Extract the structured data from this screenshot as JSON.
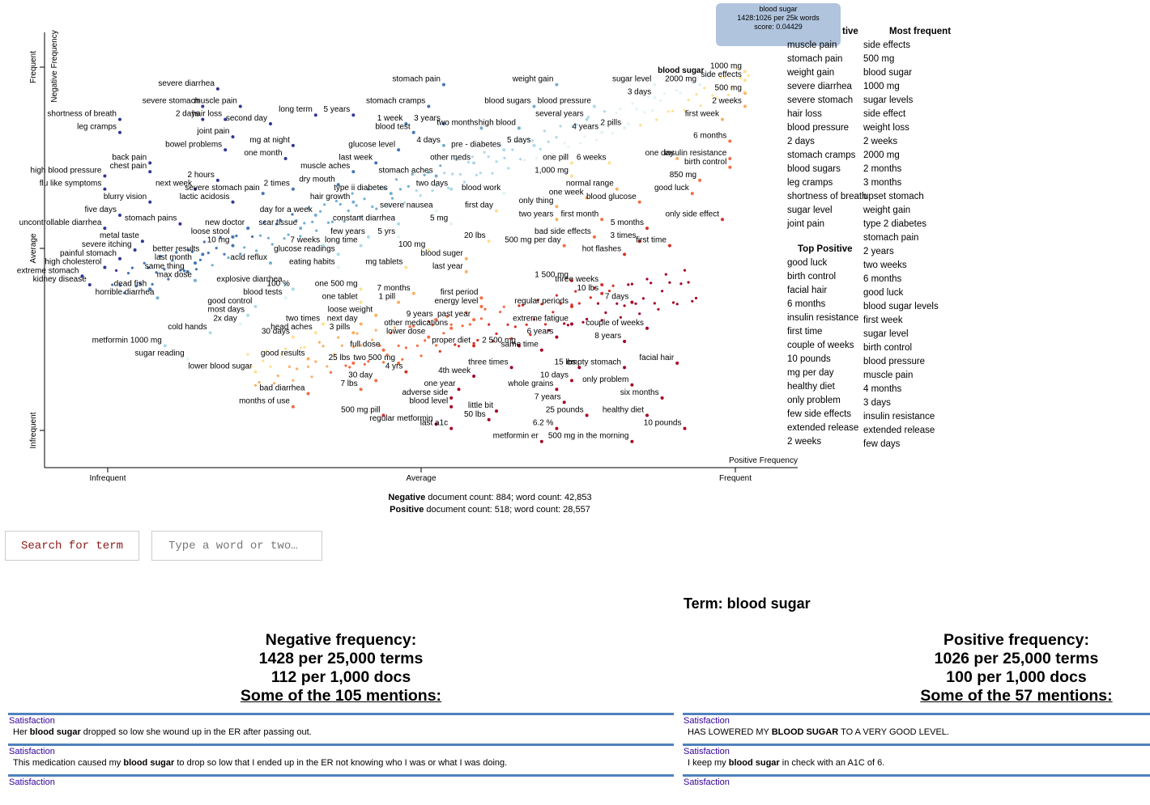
{
  "chart_data": {
    "type": "scatter",
    "title": "",
    "xlabel": "Positive Frequency",
    "ylabel": "Negative Frequency",
    "x_ticks": [
      "Infrequent",
      "Average",
      "Frequent"
    ],
    "y_ticks": [
      "Frequent",
      "Average",
      "Infrequent"
    ],
    "xlim": [
      0,
      1
    ],
    "ylim": [
      0,
      1
    ],
    "points": [
      {
        "t": "severe diarrhea",
        "x": 0.23,
        "y": 0.87
      },
      {
        "t": "muscle pain",
        "x": 0.26,
        "y": 0.83
      },
      {
        "t": "severe stomach",
        "x": 0.21,
        "y": 0.83
      },
      {
        "t": "2 days",
        "x": 0.21,
        "y": 0.8
      },
      {
        "t": "hair loss",
        "x": 0.24,
        "y": 0.8
      },
      {
        "t": "second day",
        "x": 0.3,
        "y": 0.79
      },
      {
        "t": "long term",
        "x": 0.36,
        "y": 0.81
      },
      {
        "t": "5 years",
        "x": 0.41,
        "y": 0.81
      },
      {
        "t": "shortness of breath",
        "x": 0.1,
        "y": 0.8
      },
      {
        "t": "leg cramps",
        "x": 0.1,
        "y": 0.77
      },
      {
        "t": "joint pain",
        "x": 0.25,
        "y": 0.76
      },
      {
        "t": "mg at night",
        "x": 0.33,
        "y": 0.74
      },
      {
        "t": "bowel problems",
        "x": 0.24,
        "y": 0.73
      },
      {
        "t": "stomach pain",
        "x": 0.53,
        "y": 0.88
      },
      {
        "t": "stomach cramps",
        "x": 0.51,
        "y": 0.83
      },
      {
        "t": "1 week",
        "x": 0.48,
        "y": 0.79
      },
      {
        "t": "3 years",
        "x": 0.53,
        "y": 0.79
      },
      {
        "t": "blood test",
        "x": 0.49,
        "y": 0.77
      },
      {
        "t": "two months",
        "x": 0.58,
        "y": 0.78
      },
      {
        "t": "4 days",
        "x": 0.53,
        "y": 0.74
      },
      {
        "t": "glucose level",
        "x": 0.47,
        "y": 0.73
      },
      {
        "t": "pre - diabetes",
        "x": 0.61,
        "y": 0.73
      },
      {
        "t": "weight gain",
        "x": 0.68,
        "y": 0.88
      },
      {
        "t": "blood sugars",
        "x": 0.65,
        "y": 0.83
      },
      {
        "t": "blood pressure",
        "x": 0.73,
        "y": 0.83
      },
      {
        "t": "several years",
        "x": 0.72,
        "y": 0.8
      },
      {
        "t": "high blood",
        "x": 0.63,
        "y": 0.78
      },
      {
        "t": "4 years",
        "x": 0.74,
        "y": 0.77
      },
      {
        "t": "2 pills",
        "x": 0.77,
        "y": 0.78
      },
      {
        "t": "5 days",
        "x": 0.65,
        "y": 0.74
      },
      {
        "t": "sugar level",
        "x": 0.81,
        "y": 0.88
      },
      {
        "t": "3 days",
        "x": 0.81,
        "y": 0.85
      },
      {
        "t": "blood sugar",
        "x": 0.88,
        "y": 0.9
      },
      {
        "t": "2000 mg",
        "x": 0.87,
        "y": 0.88
      },
      {
        "t": "1000 mg",
        "x": 0.93,
        "y": 0.91
      },
      {
        "t": "side effects",
        "x": 0.93,
        "y": 0.89
      },
      {
        "t": "500 mg",
        "x": 0.93,
        "y": 0.86
      },
      {
        "t": "2 weeks",
        "x": 0.93,
        "y": 0.83
      },
      {
        "t": "first week",
        "x": 0.9,
        "y": 0.8
      },
      {
        "t": "6 months",
        "x": 0.91,
        "y": 0.75
      },
      {
        "t": "insulin resistance",
        "x": 0.91,
        "y": 0.71
      },
      {
        "t": "birth control",
        "x": 0.91,
        "y": 0.69
      },
      {
        "t": "back pain",
        "x": 0.14,
        "y": 0.7
      },
      {
        "t": "chest pain",
        "x": 0.14,
        "y": 0.68
      },
      {
        "t": "2 hours",
        "x": 0.23,
        "y": 0.66
      },
      {
        "t": "one month",
        "x": 0.32,
        "y": 0.71
      },
      {
        "t": "last week",
        "x": 0.44,
        "y": 0.7
      },
      {
        "t": "muscle aches",
        "x": 0.41,
        "y": 0.68
      },
      {
        "t": "stomach aches",
        "x": 0.52,
        "y": 0.67
      },
      {
        "t": "other meds",
        "x": 0.57,
        "y": 0.7
      },
      {
        "t": "one pill",
        "x": 0.7,
        "y": 0.7
      },
      {
        "t": "6 weeks",
        "x": 0.75,
        "y": 0.7
      },
      {
        "t": "one day",
        "x": 0.84,
        "y": 0.71
      },
      {
        "t": "high blood pressure",
        "x": 0.08,
        "y": 0.67
      },
      {
        "t": "flu like symptoms",
        "x": 0.08,
        "y": 0.64
      },
      {
        "t": "next week",
        "x": 0.2,
        "y": 0.64
      },
      {
        "t": "2 times",
        "x": 0.33,
        "y": 0.64
      },
      {
        "t": "dry mouth",
        "x": 0.39,
        "y": 0.65
      },
      {
        "t": "type ii diabetes",
        "x": 0.46,
        "y": 0.63
      },
      {
        "t": "two days",
        "x": 0.54,
        "y": 0.64
      },
      {
        "t": "severe stomach pain",
        "x": 0.29,
        "y": 0.63
      },
      {
        "t": "blood work",
        "x": 0.61,
        "y": 0.63
      },
      {
        "t": "1,000 mg",
        "x": 0.7,
        "y": 0.67
      },
      {
        "t": "normal range",
        "x": 0.76,
        "y": 0.64
      },
      {
        "t": "850 mg",
        "x": 0.87,
        "y": 0.66
      },
      {
        "t": "good luck",
        "x": 0.86,
        "y": 0.63
      },
      {
        "t": "blurry vision",
        "x": 0.14,
        "y": 0.61
      },
      {
        "t": "lactic acidosis",
        "x": 0.25,
        "y": 0.61
      },
      {
        "t": "hair growth",
        "x": 0.41,
        "y": 0.61
      },
      {
        "t": "one week",
        "x": 0.72,
        "y": 0.62
      },
      {
        "t": "only thing",
        "x": 0.68,
        "y": 0.6
      },
      {
        "t": "blood glucose",
        "x": 0.79,
        "y": 0.61
      },
      {
        "t": "five days",
        "x": 0.1,
        "y": 0.58
      },
      {
        "t": "day for a week",
        "x": 0.36,
        "y": 0.58
      },
      {
        "t": "severe nausea",
        "x": 0.52,
        "y": 0.59
      },
      {
        "t": "first day",
        "x": 0.6,
        "y": 0.59
      },
      {
        "t": "two years",
        "x": 0.68,
        "y": 0.57
      },
      {
        "t": "first month",
        "x": 0.74,
        "y": 0.57
      },
      {
        "t": "only side effect",
        "x": 0.9,
        "y": 0.57
      },
      {
        "t": "uncontrollable diarrhea",
        "x": 0.08,
        "y": 0.55
      },
      {
        "t": "stomach pains",
        "x": 0.18,
        "y": 0.56
      },
      {
        "t": "scar tissue",
        "x": 0.34,
        "y": 0.55
      },
      {
        "t": "constant diarrhea",
        "x": 0.47,
        "y": 0.56
      },
      {
        "t": "5 mg",
        "x": 0.54,
        "y": 0.56
      },
      {
        "t": "new doctor",
        "x": 0.27,
        "y": 0.55
      },
      {
        "t": "5 months",
        "x": 0.8,
        "y": 0.55
      },
      {
        "t": "bad side effects",
        "x": 0.73,
        "y": 0.53
      },
      {
        "t": "loose stool",
        "x": 0.25,
        "y": 0.53
      },
      {
        "t": "few years",
        "x": 0.43,
        "y": 0.53
      },
      {
        "t": "5 yrs",
        "x": 0.47,
        "y": 0.53
      },
      {
        "t": "metal taste",
        "x": 0.13,
        "y": 0.52
      },
      {
        "t": "10 mg",
        "x": 0.25,
        "y": 0.51
      },
      {
        "t": "7 weeks",
        "x": 0.37,
        "y": 0.51
      },
      {
        "t": "long time",
        "x": 0.42,
        "y": 0.51
      },
      {
        "t": "20 lbs",
        "x": 0.59,
        "y": 0.52
      },
      {
        "t": "500 mg per day",
        "x": 0.69,
        "y": 0.51
      },
      {
        "t": "3 times",
        "x": 0.79,
        "y": 0.52
      },
      {
        "t": "first time",
        "x": 0.83,
        "y": 0.51
      },
      {
        "t": "severe itching",
        "x": 0.12,
        "y": 0.5
      },
      {
        "t": "glucose readings",
        "x": 0.39,
        "y": 0.49
      },
      {
        "t": "100 mg",
        "x": 0.51,
        "y": 0.5
      },
      {
        "t": "painful stomach",
        "x": 0.1,
        "y": 0.48
      },
      {
        "t": "better results",
        "x": 0.21,
        "y": 0.49
      },
      {
        "t": "acid reflux",
        "x": 0.3,
        "y": 0.47
      },
      {
        "t": "blood suger",
        "x": 0.56,
        "y": 0.48
      },
      {
        "t": "hot flashes",
        "x": 0.77,
        "y": 0.49
      },
      {
        "t": "high cholesterol",
        "x": 0.08,
        "y": 0.46
      },
      {
        "t": "last month",
        "x": 0.2,
        "y": 0.47
      },
      {
        "t": "eating habits",
        "x": 0.39,
        "y": 0.46
      },
      {
        "t": "mg tablets",
        "x": 0.48,
        "y": 0.46
      },
      {
        "t": "same thing",
        "x": 0.19,
        "y": 0.45
      },
      {
        "t": "last year",
        "x": 0.56,
        "y": 0.45
      },
      {
        "t": "extreme stomach",
        "x": 0.05,
        "y": 0.44
      },
      {
        "t": "max dose",
        "x": 0.2,
        "y": 0.43
      },
      {
        "t": "explosive diarrhea",
        "x": 0.32,
        "y": 0.42
      },
      {
        "t": "1 500 mg",
        "x": 0.7,
        "y": 0.43
      },
      {
        "t": "three weeks",
        "x": 0.74,
        "y": 0.42
      },
      {
        "t": "kidney disease",
        "x": 0.06,
        "y": 0.42
      },
      {
        "t": "dead fish",
        "x": 0.14,
        "y": 0.41
      },
      {
        "t": "100 %",
        "x": 0.33,
        "y": 0.41
      },
      {
        "t": "one 500 mg",
        "x": 0.42,
        "y": 0.41
      },
      {
        "t": "7 months",
        "x": 0.49,
        "y": 0.4
      },
      {
        "t": "10 lbs",
        "x": 0.74,
        "y": 0.4
      },
      {
        "t": "horrible diarrhea",
        "x": 0.15,
        "y": 0.39
      },
      {
        "t": "blood tests",
        "x": 0.32,
        "y": 0.39
      },
      {
        "t": "first period",
        "x": 0.58,
        "y": 0.39
      },
      {
        "t": "7 days",
        "x": 0.78,
        "y": 0.38
      },
      {
        "t": "one tablet",
        "x": 0.42,
        "y": 0.38
      },
      {
        "t": "1 pill",
        "x": 0.47,
        "y": 0.38
      },
      {
        "t": "good control",
        "x": 0.28,
        "y": 0.37
      },
      {
        "t": "energy level",
        "x": 0.58,
        "y": 0.37
      },
      {
        "t": "regular periods",
        "x": 0.7,
        "y": 0.37
      },
      {
        "t": "most days",
        "x": 0.27,
        "y": 0.35
      },
      {
        "t": "loose weight",
        "x": 0.44,
        "y": 0.35
      },
      {
        "t": "2x day",
        "x": 0.26,
        "y": 0.33
      },
      {
        "t": "two times",
        "x": 0.37,
        "y": 0.33
      },
      {
        "t": "next day",
        "x": 0.42,
        "y": 0.33
      },
      {
        "t": "9 years",
        "x": 0.52,
        "y": 0.34
      },
      {
        "t": "past year",
        "x": 0.57,
        "y": 0.34
      },
      {
        "t": "head aches",
        "x": 0.36,
        "y": 0.31
      },
      {
        "t": "3 pills",
        "x": 0.41,
        "y": 0.31
      },
      {
        "t": "other medications",
        "x": 0.54,
        "y": 0.32
      },
      {
        "t": "extreme fatigue",
        "x": 0.7,
        "y": 0.33
      },
      {
        "t": "couple of weeks",
        "x": 0.8,
        "y": 0.32
      },
      {
        "t": "cold hands",
        "x": 0.22,
        "y": 0.31
      },
      {
        "t": "30 days",
        "x": 0.33,
        "y": 0.3
      },
      {
        "t": "lower dose",
        "x": 0.51,
        "y": 0.3
      },
      {
        "t": "6 years",
        "x": 0.68,
        "y": 0.3
      },
      {
        "t": "metformin 1000 mg",
        "x": 0.16,
        "y": 0.28
      },
      {
        "t": "proper diet",
        "x": 0.57,
        "y": 0.28
      },
      {
        "t": "2 500 mg",
        "x": 0.63,
        "y": 0.28
      },
      {
        "t": "8 years",
        "x": 0.77,
        "y": 0.29
      },
      {
        "t": "full dose",
        "x": 0.45,
        "y": 0.27
      },
      {
        "t": "same time",
        "x": 0.66,
        "y": 0.27
      },
      {
        "t": "sugar reading",
        "x": 0.19,
        "y": 0.25
      },
      {
        "t": "good results",
        "x": 0.35,
        "y": 0.25
      },
      {
        "t": "25 lbs",
        "x": 0.41,
        "y": 0.24
      },
      {
        "t": "facial hair",
        "x": 0.84,
        "y": 0.24
      },
      {
        "t": "two 500 mg",
        "x": 0.47,
        "y": 0.24
      },
      {
        "t": "three times",
        "x": 0.62,
        "y": 0.23
      },
      {
        "t": "15 lbs",
        "x": 0.71,
        "y": 0.23
      },
      {
        "t": "empty stomach",
        "x": 0.77,
        "y": 0.23
      },
      {
        "t": "lower blood sugar",
        "x": 0.28,
        "y": 0.22
      },
      {
        "t": "4 yrs",
        "x": 0.48,
        "y": 0.22
      },
      {
        "t": "4th week",
        "x": 0.57,
        "y": 0.21
      },
      {
        "t": "30 day",
        "x": 0.44,
        "y": 0.2
      },
      {
        "t": "10 days",
        "x": 0.7,
        "y": 0.2
      },
      {
        "t": "only problem",
        "x": 0.78,
        "y": 0.19
      },
      {
        "t": "7 lbs",
        "x": 0.42,
        "y": 0.18
      },
      {
        "t": "one year",
        "x": 0.55,
        "y": 0.18
      },
      {
        "t": "whole grains",
        "x": 0.68,
        "y": 0.18
      },
      {
        "t": "bad diarrhea",
        "x": 0.35,
        "y": 0.17
      },
      {
        "t": "adverse side",
        "x": 0.54,
        "y": 0.16
      },
      {
        "t": "six months",
        "x": 0.82,
        "y": 0.16
      },
      {
        "t": "7 years",
        "x": 0.69,
        "y": 0.15
      },
      {
        "t": "months of use",
        "x": 0.33,
        "y": 0.14
      },
      {
        "t": "blood level",
        "x": 0.54,
        "y": 0.14
      },
      {
        "t": "little bit",
        "x": 0.6,
        "y": 0.13
      },
      {
        "t": "500 mg pill",
        "x": 0.45,
        "y": 0.12
      },
      {
        "t": "healthy diet",
        "x": 0.8,
        "y": 0.12
      },
      {
        "t": "25 pounds",
        "x": 0.72,
        "y": 0.12
      },
      {
        "t": "regular metformin",
        "x": 0.52,
        "y": 0.1
      },
      {
        "t": "50 lbs",
        "x": 0.59,
        "y": 0.11
      },
      {
        "t": "10 pounds",
        "x": 0.85,
        "y": 0.09
      },
      {
        "t": "6.2 %",
        "x": 0.68,
        "y": 0.09
      },
      {
        "t": "last a1c",
        "x": 0.54,
        "y": 0.09
      },
      {
        "t": "metformin er",
        "x": 0.66,
        "y": 0.06
      },
      {
        "t": "500 mg in the morning",
        "x": 0.78,
        "y": 0.06
      }
    ]
  },
  "tooltip": {
    "line1": "blood sugar",
    "line2": "1428:1026 per 25k words",
    "line3": "score: 0.04429"
  },
  "side_lists": {
    "top_negative_header": "tive",
    "top_negative": [
      "muscle pain",
      "stomach pain",
      "weight gain",
      "severe diarrhea",
      "severe stomach",
      "hair loss",
      "blood pressure",
      "2 days",
      "stomach cramps",
      "blood sugars",
      "leg cramps",
      "shortness of breath",
      "sugar level",
      "joint pain"
    ],
    "top_positive_header": "Top Positive",
    "top_positive": [
      "good luck",
      "birth control",
      "facial hair",
      "6 months",
      "insulin resistance",
      "first time",
      "couple of weeks",
      "10 pounds",
      "mg per day",
      "healthy diet",
      "only problem",
      "few side effects",
      "extended release",
      "2 weeks"
    ],
    "most_frequent_header": "Most frequent",
    "most_frequent": [
      "side effects",
      "500 mg",
      "blood sugar",
      "1000 mg",
      "sugar levels",
      "side effect",
      "weight loss",
      "2 weeks",
      "2000 mg",
      "2 months",
      "3 months",
      "upset stomach",
      "weight gain",
      "type 2 diabetes",
      "stomach pain",
      "2 years",
      "two weeks",
      "6 months",
      "good luck",
      "blood sugar levels",
      "first week",
      "sugar level",
      "birth control",
      "blood pressure",
      "muscle pain",
      "4 months",
      "3 days",
      "insulin resistance",
      "extended release",
      "few days"
    ]
  },
  "counts": {
    "neg_label": "Negative",
    "neg_text": " document count: 884; word count: 42,853",
    "pos_label": "Positive",
    "pos_text": " document count: 518; word count: 28,557"
  },
  "search": {
    "button_label": "Search for term",
    "placeholder": "Type a word or two…"
  },
  "term_title": "Term: blood sugar",
  "negative_freq": {
    "line1": "Negative frequency:",
    "line2": "1428 per 25,000 terms",
    "line3": "112 per 1,000 docs",
    "line4": "Some of the 105 mentions:"
  },
  "positive_freq": {
    "line1": "Positive frequency:",
    "line2": "1026 per 25,000 terms",
    "line3": "100 per 1,000 docs",
    "line4": "Some of the 57 mentions:"
  },
  "neg_snippets": [
    {
      "cat": "Satisfaction",
      "pre": "Her ",
      "term": "blood sugar",
      "post": " dropped so low she wound up in the ER after passing out."
    },
    {
      "cat": "Satisfaction",
      "pre": "This medication caused my ",
      "term": "blood sugar",
      "post": " to drop so low that I ended up in the ER not knowing who I was or what I was doing."
    },
    {
      "cat": "Satisfaction",
      "pre": "",
      "term": "",
      "post": ""
    }
  ],
  "pos_snippets": [
    {
      "cat": "Satisfaction",
      "pre": "HAS LOWERED MY ",
      "term": "BLOOD SUGAR",
      "post": " TO A VERY GOOD LEVEL."
    },
    {
      "cat": "Satisfaction",
      "pre": "I keep my ",
      "term": "blood sugar",
      "post": " in check with an A1C of 6."
    },
    {
      "cat": "Satisfaction",
      "pre": "",
      "term": "",
      "post": ""
    }
  ]
}
